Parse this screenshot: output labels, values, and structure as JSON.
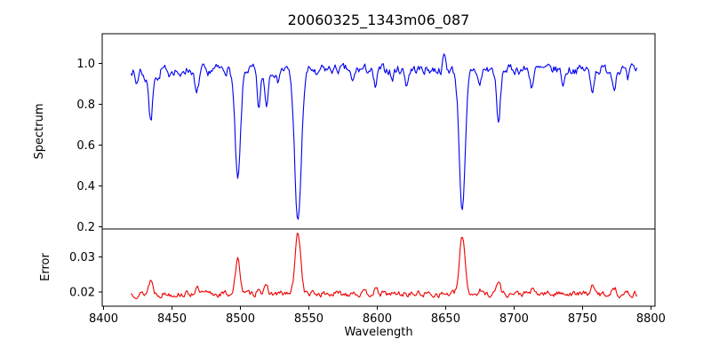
{
  "chart_data": {
    "type": "line",
    "title": "20060325_1343m06_087",
    "xlabel": "Wavelength",
    "legend": "none",
    "grid": false,
    "x": {
      "min": 8399,
      "max": 8803,
      "ticks": [
        8400,
        8450,
        8500,
        8550,
        8600,
        8650,
        8700,
        8750,
        8800
      ],
      "data_start": 8420,
      "data_end": 8790,
      "step": 0.75
    },
    "panels": [
      {
        "name": "spectrum",
        "ylabel": "Spectrum",
        "color": "#0000ee",
        "ylim": [
          0.19,
          1.145
        ],
        "yticks": [
          0.2,
          0.4,
          0.6,
          0.8,
          1.0
        ],
        "ytick_labels": [
          "0.2",
          "0.4",
          "0.6",
          "0.8",
          "1.0"
        ],
        "baseline": 0.97,
        "noise": 0.04,
        "noise_smooth": 0.5,
        "seed": 7,
        "features": [
          {
            "center": 8424.0,
            "amp": -0.07,
            "sigma": 1.2
          },
          {
            "center": 8430.0,
            "amp": -0.05,
            "sigma": 1.0
          },
          {
            "center": 8434.5,
            "amp": -0.26,
            "sigma": 1.4
          },
          {
            "center": 8440.0,
            "amp": -0.05,
            "sigma": 1.0
          },
          {
            "center": 8447.0,
            "amp": -0.04,
            "sigma": 1.0
          },
          {
            "center": 8456.0,
            "amp": -0.05,
            "sigma": 1.0
          },
          {
            "center": 8468.0,
            "amp": -0.13,
            "sigma": 1.4
          },
          {
            "center": 8476.0,
            "amp": -0.05,
            "sigma": 1.0
          },
          {
            "center": 8498.1,
            "amp": -0.55,
            "sigma": 2.0
          },
          {
            "center": 8513.5,
            "amp": -0.19,
            "sigma": 1.3
          },
          {
            "center": 8519.0,
            "amp": -0.17,
            "sigma": 1.3
          },
          {
            "center": 8527.0,
            "amp": -0.06,
            "sigma": 1.0
          },
          {
            "center": 8542.1,
            "amp": -0.75,
            "sigma": 2.4
          },
          {
            "center": 8556.0,
            "amp": -0.05,
            "sigma": 1.0
          },
          {
            "center": 8582.0,
            "amp": -0.07,
            "sigma": 1.2
          },
          {
            "center": 8598.5,
            "amp": -0.09,
            "sigma": 1.3
          },
          {
            "center": 8611.0,
            "amp": -0.05,
            "sigma": 1.0
          },
          {
            "center": 8621.5,
            "amp": -0.07,
            "sigma": 1.2
          },
          {
            "center": 8649.0,
            "amp": 0.07,
            "sigma": 0.9
          },
          {
            "center": 8662.2,
            "amp": -0.69,
            "sigma": 2.2
          },
          {
            "center": 8674.8,
            "amp": -0.08,
            "sigma": 1.2
          },
          {
            "center": 8688.6,
            "amp": -0.27,
            "sigma": 1.4
          },
          {
            "center": 8713.0,
            "amp": -0.08,
            "sigma": 1.2
          },
          {
            "center": 8736.0,
            "amp": -0.07,
            "sigma": 1.2
          },
          {
            "center": 8757.0,
            "amp": -0.1,
            "sigma": 1.3
          },
          {
            "center": 8773.0,
            "amp": -0.08,
            "sigma": 1.2
          },
          {
            "center": 8783.0,
            "amp": -0.06,
            "sigma": 1.0
          }
        ]
      },
      {
        "name": "error",
        "ylabel": "Error",
        "color": "#ee0000",
        "ylim": [
          0.016,
          0.038
        ],
        "yticks": [
          0.02,
          0.03
        ],
        "ytick_labels": [
          "0.02",
          "0.03"
        ],
        "baseline": 0.0195,
        "noise": 0.0015,
        "noise_smooth": 0.5,
        "seed": 13,
        "features": [
          {
            "center": 8434.5,
            "amp": 0.004,
            "sigma": 1.5
          },
          {
            "center": 8468.0,
            "amp": 0.0015,
            "sigma": 1.5
          },
          {
            "center": 8498.1,
            "amp": 0.0095,
            "sigma": 1.8
          },
          {
            "center": 8513.5,
            "amp": 0.002,
            "sigma": 1.3
          },
          {
            "center": 8519.0,
            "amp": 0.0018,
            "sigma": 1.3
          },
          {
            "center": 8542.1,
            "amp": 0.0175,
            "sigma": 2.0
          },
          {
            "center": 8582.0,
            "amp": 0.0008,
            "sigma": 1.5
          },
          {
            "center": 8598.5,
            "amp": 0.001,
            "sigma": 1.5
          },
          {
            "center": 8662.2,
            "amp": 0.0165,
            "sigma": 2.0
          },
          {
            "center": 8674.8,
            "amp": 0.001,
            "sigma": 1.2
          },
          {
            "center": 8688.6,
            "amp": 0.0035,
            "sigma": 1.5
          },
          {
            "center": 8713.0,
            "amp": 0.001,
            "sigma": 1.2
          },
          {
            "center": 8736.0,
            "amp": 0.0008,
            "sigma": 1.2
          },
          {
            "center": 8757.0,
            "amp": 0.002,
            "sigma": 1.4
          },
          {
            "center": 8773.0,
            "amp": 0.0018,
            "sigma": 1.4
          }
        ]
      }
    ]
  }
}
